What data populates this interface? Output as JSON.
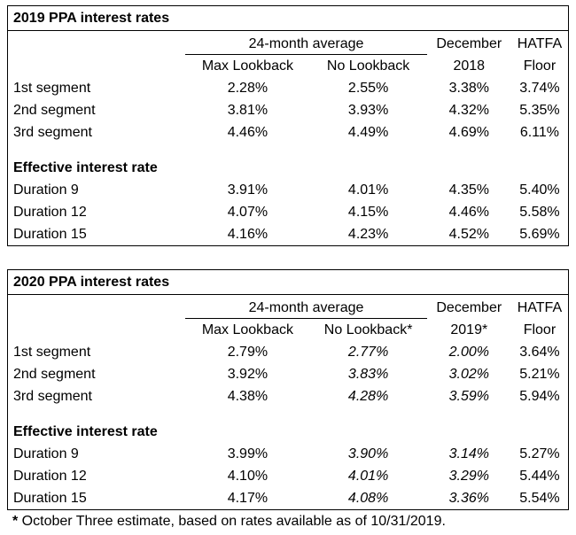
{
  "colors": {
    "background": "#ffffff",
    "text": "#000000",
    "border": "#000000"
  },
  "tables": [
    {
      "title": "2019 PPA interest rates",
      "group_header": "24-month average",
      "columns": [
        "Max Lookback",
        "No Lookback"
      ],
      "december": [
        "December",
        "2018"
      ],
      "hatfa": [
        "HATFA",
        "Floor"
      ],
      "segments": [
        {
          "label": "1st segment",
          "values": [
            "2.28%",
            "2.55%",
            "3.38%",
            "3.74%"
          ]
        },
        {
          "label": "2nd segment",
          "values": [
            "3.81%",
            "3.93%",
            "4.32%",
            "5.35%"
          ]
        },
        {
          "label": "3rd segment",
          "values": [
            "4.46%",
            "4.49%",
            "4.69%",
            "6.11%"
          ]
        }
      ],
      "effective_label": "Effective interest rate",
      "durations": [
        {
          "label": "Duration 9",
          "values": [
            "3.91%",
            "4.01%",
            "4.35%",
            "5.40%"
          ]
        },
        {
          "label": "Duration 12",
          "values": [
            "4.07%",
            "4.15%",
            "4.46%",
            "5.58%"
          ]
        },
        {
          "label": "Duration 15",
          "values": [
            "4.16%",
            "4.23%",
            "4.52%",
            "5.69%"
          ]
        }
      ]
    },
    {
      "title": "2020 PPA interest rates",
      "group_header": "24-month average",
      "columns": [
        "Max Lookback",
        "No Lookback*"
      ],
      "december": [
        "December",
        "2019*"
      ],
      "hatfa": [
        "HATFA",
        "Floor"
      ],
      "segments": [
        {
          "label": "1st segment",
          "values": [
            "2.79%",
            "2.77%",
            "2.00%",
            "3.64%"
          ]
        },
        {
          "label": "2nd segment",
          "values": [
            "3.92%",
            "3.83%",
            "3.02%",
            "5.21%"
          ]
        },
        {
          "label": "3rd segment",
          "values": [
            "4.38%",
            "4.28%",
            "3.59%",
            "5.94%"
          ]
        }
      ],
      "effective_label": "Effective interest rate",
      "durations": [
        {
          "label": "Duration 9",
          "values": [
            "3.99%",
            "3.90%",
            "3.14%",
            "5.27%"
          ]
        },
        {
          "label": "Duration 12",
          "values": [
            "4.10%",
            "4.01%",
            "3.29%",
            "5.44%"
          ]
        },
        {
          "label": "Duration 15",
          "values": [
            "4.17%",
            "4.08%",
            "3.36%",
            "5.54%"
          ]
        }
      ]
    }
  ],
  "footnote": {
    "marker": "*",
    "text": " October Three estimate, based on rates available as of 10/31/2019."
  }
}
